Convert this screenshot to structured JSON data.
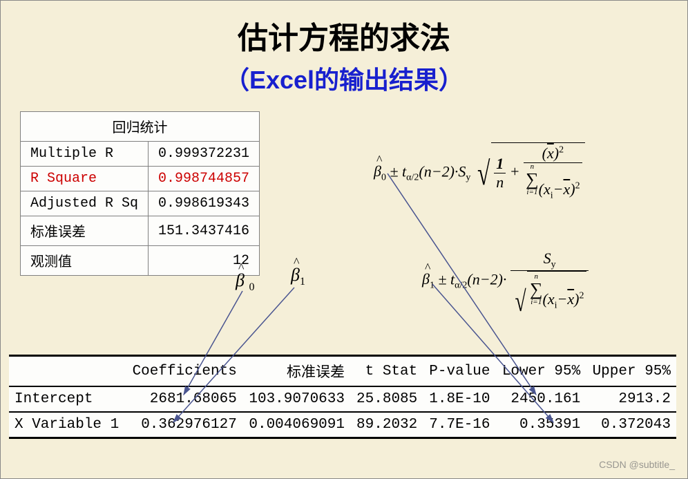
{
  "title": "估计方程的求法",
  "subtitle_open": "（",
  "subtitle_brand": "Excel",
  "subtitle_rest": "的输出结果）",
  "stat_table": {
    "header": "回归统计",
    "rows": [
      {
        "label": "Multiple R",
        "value": "0.999372231",
        "red": false
      },
      {
        "label": "R Square",
        "value": "0.998744857",
        "red": true
      },
      {
        "label": "Adjusted R Sq",
        "value": "0.998619343",
        "red": false
      },
      {
        "label": "标准误差",
        "value": "151.3437416",
        "red": false
      },
      {
        "label": "观测值",
        "value": "12",
        "red": false
      }
    ]
  },
  "beta_labels": {
    "b0": "β",
    "b0_sub": "0",
    "b1": "β",
    "b1_sub": "1"
  },
  "coef_table": {
    "columns": [
      "",
      "Coefficients",
      "标准误差",
      "t Stat",
      "P-value",
      "Lower 95%",
      "Upper 95%"
    ],
    "rows": [
      [
        "Intercept",
        "2681.68065",
        "103.9070633",
        "25.8085",
        "1.8E-10",
        "2450.161",
        "2913.2"
      ],
      [
        "X Variable 1",
        "0.362976127",
        "0.004069091",
        "89.2032",
        "7.7E-16",
        "0.35391",
        "0.372043"
      ]
    ]
  },
  "formulas": {
    "f1_lead": "β̂₀ ± t",
    "f2_lead": "β̂₁ ± t"
  },
  "colors": {
    "bg": "#f5efd8",
    "arrow": "#4a5590",
    "subtitle": "#1820ce",
    "red": "#cc0000"
  },
  "watermark": "CSDN @subtitle_"
}
